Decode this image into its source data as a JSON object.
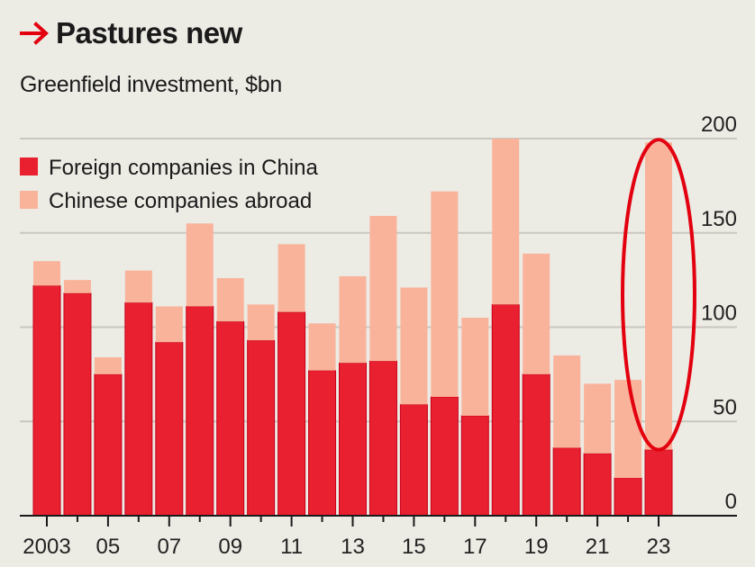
{
  "header": {
    "arrow_icon": "right-arrow-icon",
    "title": "Pastures new",
    "subtitle": "Greenfield investment, $bn"
  },
  "colors": {
    "foreign": "#e8202f",
    "chinese": "#f9b39b",
    "accent": "#e3000f",
    "background": "#ecebe4",
    "gridline": "#c9c7c0",
    "axis": "#1a1a1a"
  },
  "chart_data": {
    "type": "bar",
    "stacked": true,
    "title": "Pastures new",
    "subtitle": "Greenfield investment, $bn",
    "xlabel": "",
    "ylabel": "$bn",
    "categories": [
      "2003",
      "2004",
      "2005",
      "2006",
      "2007",
      "2008",
      "2009",
      "2010",
      "2011",
      "2012",
      "2013",
      "2014",
      "2015",
      "2016",
      "2017",
      "2018",
      "2019",
      "2020",
      "2021",
      "2022",
      "2023"
    ],
    "x_tick_labels": [
      {
        "category": "2003",
        "label": "2003"
      },
      {
        "category": "2005",
        "label": "05"
      },
      {
        "category": "2007",
        "label": "07"
      },
      {
        "category": "2009",
        "label": "09"
      },
      {
        "category": "2011",
        "label": "11"
      },
      {
        "category": "2013",
        "label": "13"
      },
      {
        "category": "2015",
        "label": "15"
      },
      {
        "category": "2017",
        "label": "17"
      },
      {
        "category": "2019",
        "label": "19"
      },
      {
        "category": "2021",
        "label": "21"
      },
      {
        "category": "2023",
        "label": "23"
      }
    ],
    "series": [
      {
        "name": "Foreign companies in China",
        "color_key": "foreign",
        "values": [
          122,
          118,
          75,
          113,
          92,
          111,
          103,
          93,
          108,
          77,
          81,
          82,
          59,
          63,
          53,
          112,
          75,
          36,
          33,
          20,
          35
        ]
      },
      {
        "name": "Chinese companies abroad",
        "color_key": "chinese",
        "values": [
          13,
          7,
          9,
          17,
          19,
          44,
          23,
          19,
          36,
          25,
          46,
          77,
          62,
          109,
          52,
          88,
          64,
          49,
          37,
          52,
          163
        ]
      }
    ],
    "ylim": [
      0,
      200
    ],
    "yticks": [
      0,
      50,
      100,
      150,
      200
    ],
    "y_axis_side": "right",
    "grid": true,
    "legend_position": "top-left",
    "annotations": [
      {
        "type": "ellipse",
        "target_category": "2023",
        "description": "Red ellipse highlighting 2023 Chinese companies abroad"
      }
    ]
  }
}
